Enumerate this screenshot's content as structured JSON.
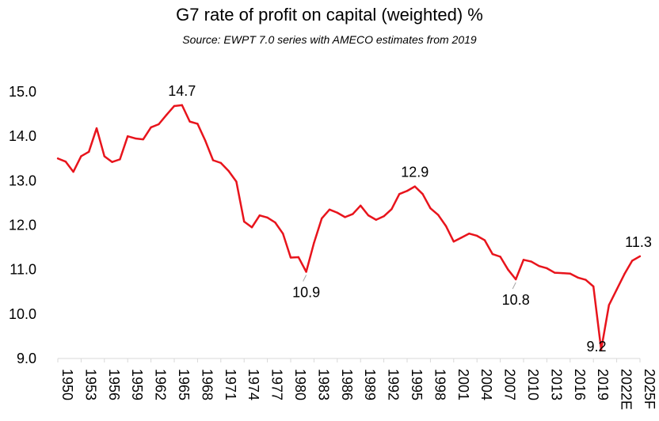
{
  "chart_data": {
    "type": "line",
    "title": "G7 rate of profit on capital (weighted) %",
    "subtitle": "Source: EWPT 7.0 series with AMECO estimates from 2019",
    "xlabel": "",
    "ylabel": "",
    "ylim": [
      9.0,
      15.0
    ],
    "yticks": [
      "9.0",
      "10.0",
      "11.0",
      "12.0",
      "13.0",
      "14.0",
      "15.0"
    ],
    "xtick_labels": [
      "1950",
      "1953",
      "1956",
      "1959",
      "1962",
      "1965",
      "1968",
      "1971",
      "1974",
      "1977",
      "1980",
      "1983",
      "1986",
      "1989",
      "1992",
      "1995",
      "1998",
      "2001",
      "2004",
      "2007",
      "2010",
      "2013",
      "2016",
      "2019",
      "2022E",
      "2025F"
    ],
    "line_color": "#e8141c",
    "grid": false,
    "legend": "none",
    "series": [
      {
        "x": [
          1950,
          1951,
          1952,
          1953,
          1954,
          1955,
          1956,
          1957,
          1958,
          1959,
          1960,
          1961,
          1962,
          1963,
          1964,
          1965,
          1966,
          1967,
          1968,
          1969,
          1970,
          1971,
          1972,
          1973,
          1974,
          1975,
          1976,
          1977,
          1978,
          1979,
          1980,
          1981,
          1982,
          1983,
          1984,
          1985,
          1986,
          1987,
          1988,
          1989,
          1990,
          1991,
          1992,
          1993,
          1994,
          1995,
          1996,
          1997,
          1998,
          1999,
          2000,
          2001,
          2002,
          2003,
          2004,
          2005,
          2006,
          2007,
          2008,
          2009,
          2010,
          2011,
          2012,
          2013,
          2014,
          2015,
          2016,
          2017,
          2018,
          2019,
          2020,
          2021,
          2022,
          2023,
          2024,
          2025
        ],
        "values": [
          13.5,
          13.43,
          13.2,
          13.55,
          13.65,
          14.18,
          13.55,
          13.42,
          13.48,
          14.0,
          13.95,
          13.93,
          14.2,
          14.27,
          14.48,
          14.68,
          14.7,
          14.33,
          14.28,
          13.9,
          13.46,
          13.4,
          13.22,
          12.98,
          12.08,
          11.95,
          12.22,
          12.17,
          12.06,
          11.81,
          11.27,
          11.28,
          10.95,
          11.6,
          12.15,
          12.35,
          12.28,
          12.18,
          12.25,
          12.44,
          12.22,
          12.12,
          12.2,
          12.36,
          12.7,
          12.77,
          12.87,
          12.7,
          12.38,
          12.23,
          11.98,
          11.63,
          11.72,
          11.81,
          11.76,
          11.66,
          11.35,
          11.29,
          11.0,
          10.78,
          11.22,
          11.18,
          11.08,
          11.03,
          10.93,
          10.92,
          10.91,
          10.82,
          10.77,
          10.62,
          9.2,
          10.2,
          10.55,
          10.9,
          11.2,
          11.3
        ]
      }
    ],
    "data_labels": [
      {
        "x": 1966,
        "y": 14.7,
        "text": "14.7",
        "pos": "above"
      },
      {
        "x": 1982,
        "y": 10.95,
        "text": "10.9",
        "pos": "below"
      },
      {
        "x": 1996,
        "y": 12.87,
        "text": "12.9",
        "pos": "above"
      },
      {
        "x": 2009,
        "y": 10.78,
        "text": "10.8",
        "pos": "below"
      },
      {
        "x": 2020,
        "y": 9.2,
        "text": "9.2",
        "pos": "at"
      },
      {
        "x": 2025,
        "y": 11.3,
        "text": "11.3",
        "pos": "above"
      }
    ]
  }
}
